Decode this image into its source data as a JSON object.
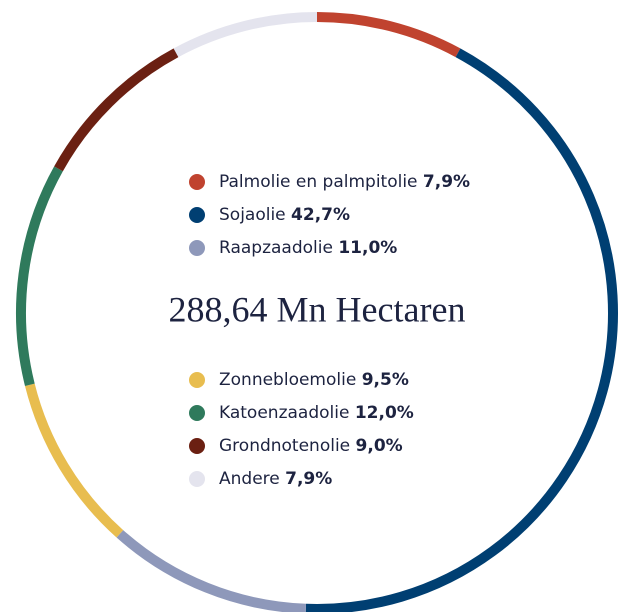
{
  "chart_data": {
    "type": "donut",
    "center_label": "288,64 Mn Hectaren",
    "categories": [
      "Palmolie en palmpitolie",
      "Sojaolie",
      "Raapzaadolie",
      "Zonnebloemolie",
      "Katoenzaadolie",
      "Grondnotenolie",
      "Andere"
    ],
    "values": [
      7.9,
      42.7,
      11.0,
      9.5,
      12.0,
      9.0,
      7.9
    ],
    "value_labels": [
      "7,9%",
      "42,7%",
      "11,0%",
      "9,5%",
      "12,0%",
      "9,0%",
      "7,9%"
    ],
    "colors": [
      "#c0432f",
      "#003f72",
      "#8e98ba",
      "#e8bd4f",
      "#2f7a5c",
      "#6b2012",
      "#e4e4ee"
    ]
  }
}
